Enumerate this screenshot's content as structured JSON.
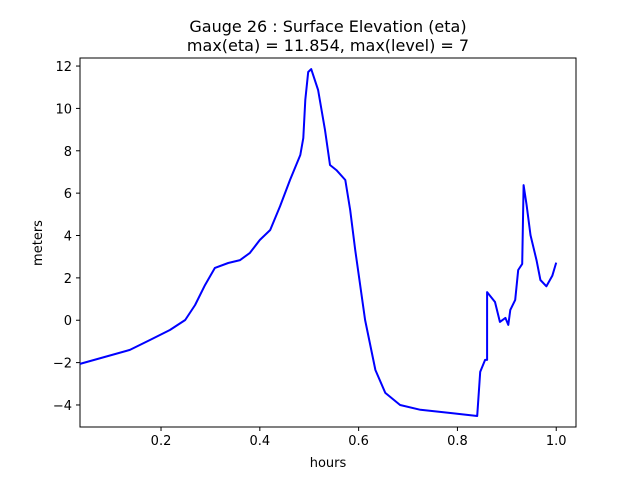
{
  "chart_data": {
    "type": "line",
    "title": "Gauge 26 : Surface Elevation (eta)",
    "subtitle": "max(eta) =  11.854,    max(level) = 7",
    "xlabel": "hours",
    "ylabel": "meters",
    "xlim": [
      0.036,
      1.04
    ],
    "ylim": [
      -5.04,
      12.38
    ],
    "xticks": [
      0.2,
      0.4,
      0.6,
      0.8,
      1.0
    ],
    "xtick_labels": [
      "0.2",
      "0.4",
      "0.6",
      "0.8",
      "1.0"
    ],
    "yticks": [
      -4,
      -2,
      0,
      2,
      4,
      6,
      8,
      10,
      12
    ],
    "ytick_labels": [
      "−4",
      "−2",
      "0",
      "2",
      "4",
      "6",
      "8",
      "10",
      "12"
    ],
    "grid": false,
    "series": [
      {
        "name": "eta",
        "color": "#0000ff",
        "x": [
          0.036,
          0.137,
          0.178,
          0.218,
          0.249,
          0.269,
          0.289,
          0.309,
          0.336,
          0.36,
          0.38,
          0.4,
          0.421,
          0.441,
          0.461,
          0.482,
          0.488,
          0.492,
          0.498,
          0.504,
          0.518,
          0.532,
          0.542,
          0.555,
          0.573,
          0.583,
          0.593,
          0.613,
          0.634,
          0.654,
          0.684,
          0.725,
          0.786,
          0.84,
          0.846,
          0.856,
          0.86,
          0.86,
          0.876,
          0.886,
          0.897,
          0.903,
          0.907,
          0.917,
          0.923,
          0.931,
          0.934,
          0.94,
          0.948,
          0.96,
          0.968,
          0.98,
          0.992,
          1.0
        ],
        "y": [
          -2.06,
          -1.4,
          -0.93,
          -0.46,
          0.01,
          0.72,
          1.66,
          2.47,
          2.7,
          2.84,
          3.18,
          3.79,
          4.26,
          5.39,
          6.62,
          7.8,
          8.6,
          10.4,
          11.72,
          11.854,
          10.87,
          8.98,
          7.33,
          7.09,
          6.62,
          5.2,
          3.32,
          0.01,
          -2.35,
          -3.43,
          -4.0,
          -4.23,
          -4.38,
          -4.52,
          -2.44,
          -1.87,
          -1.87,
          1.33,
          0.86,
          -0.08,
          0.11,
          -0.22,
          0.49,
          0.96,
          2.37,
          2.66,
          6.38,
          5.44,
          4.02,
          2.84,
          1.9,
          1.6,
          2.1,
          2.72
        ]
      }
    ]
  }
}
